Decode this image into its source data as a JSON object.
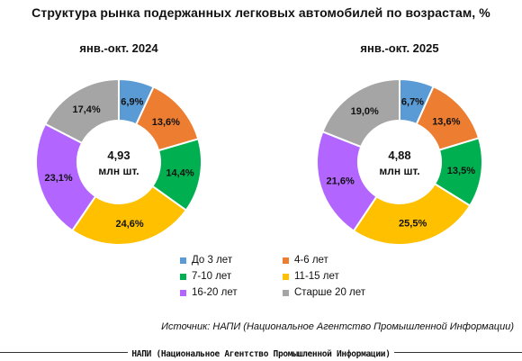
{
  "title": "Структура рынка подержанных легковых автомобилей по возрастам, %",
  "chart_data": [
    {
      "type": "pie",
      "title": "янв.-окт. 2024",
      "center_value": "4,93",
      "center_unit": "млн шт.",
      "categories": [
        "До 3 лет",
        "4-6 лет",
        "7-10 лет",
        "11-15 лет",
        "16-20 лет",
        "Старше 20 лет"
      ],
      "values": [
        6.9,
        13.6,
        14.4,
        24.6,
        23.1,
        17.4
      ],
      "labels": [
        "6,9%",
        "13,6%",
        "14,4%",
        "24,6%",
        "23,1%",
        "17,4%"
      ]
    },
    {
      "type": "pie",
      "title": "янв.-окт. 2025",
      "center_value": "4,88",
      "center_unit": "млн шт.",
      "categories": [
        "До 3 лет",
        "4-6 лет",
        "7-10 лет",
        "11-15 лет",
        "16-20 лет",
        "Старше 20 лет"
      ],
      "values": [
        6.7,
        13.6,
        13.5,
        25.5,
        21.6,
        19.0
      ],
      "labels": [
        "6,7%",
        "13,6%",
        "13,5%",
        "25,5%",
        "21,6%",
        "19,0%"
      ]
    }
  ],
  "legend": [
    {
      "label": "До 3 лет",
      "color": "#5B9BD5"
    },
    {
      "label": "4-6 лет",
      "color": "#ED7D31"
    },
    {
      "label": "7-10 лет",
      "color": "#00B050"
    },
    {
      "label": "11-15 лет",
      "color": "#FFC000"
    },
    {
      "label": "16-20 лет",
      "color": "#B266FF"
    },
    {
      "label": "Старше 20 лет",
      "color": "#A5A5A5"
    }
  ],
  "colors": [
    "#5B9BD5",
    "#ED7D31",
    "#00B050",
    "#FFC000",
    "#B266FF",
    "#A5A5A5"
  ],
  "source": "Источник: НАПИ (Национальное Агентство Промышленной Информации)",
  "footer": "НАПИ (Национальное Агентство Промышленной Информации)"
}
